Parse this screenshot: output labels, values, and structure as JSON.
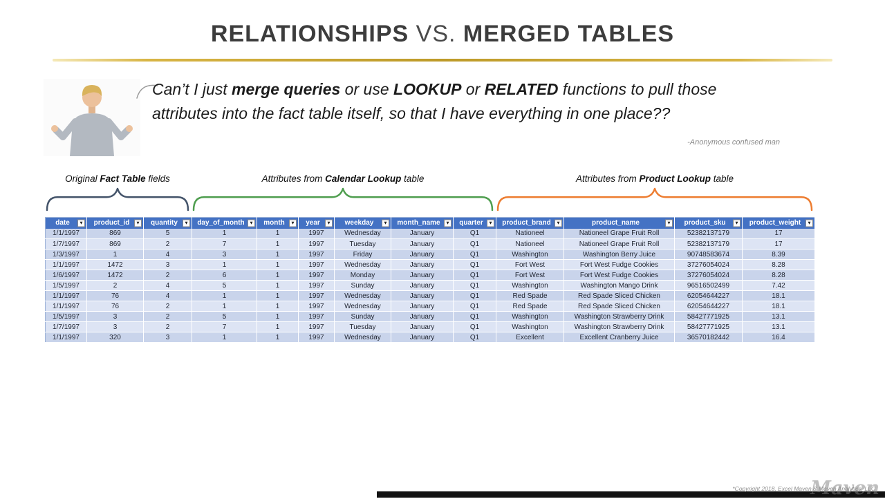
{
  "title": {
    "part1": "RELATIONSHIPS ",
    "part2": "VS. ",
    "part3": "MERGED TABLES"
  },
  "quote": {
    "segments": [
      {
        "text": "Can’t I just ",
        "bold": false
      },
      {
        "text": "merge queries",
        "bold": true
      },
      {
        "text": " or use ",
        "bold": false
      },
      {
        "text": "LOOKUP",
        "bold": true
      },
      {
        "text": " or ",
        "bold": false
      },
      {
        "text": "RELATED",
        "bold": true
      },
      {
        "text": " functions to pull those attributes into the fact table itself, so that I have everything in one place??",
        "bold": false
      }
    ],
    "attribution": "-Anonymous confused man"
  },
  "groups": [
    {
      "label_pre": "Original ",
      "label_bold": "Fact Table",
      "label_post": " fields",
      "color": "#44546A"
    },
    {
      "label_pre": "Attributes from ",
      "label_bold": "Calendar Lookup",
      "label_post": " table",
      "color": "#4F9E4F"
    },
    {
      "label_pre": "Attributes from ",
      "label_bold": "Product Lookup",
      "label_post": " table",
      "color": "#ED7D31"
    }
  ],
  "icons": {
    "filter_dropdown": "▾"
  },
  "table": {
    "columns": [
      "date",
      "product_id",
      "quantity",
      "day_of_month",
      "month",
      "year",
      "weekday",
      "month_name",
      "quarter",
      "product_brand",
      "product_name",
      "product_sku",
      "product_weight"
    ],
    "rows": [
      [
        "1/1/1997",
        "869",
        "5",
        "1",
        "1",
        "1997",
        "Wednesday",
        "January",
        "Q1",
        "Nationeel",
        "Nationeel Grape Fruit Roll",
        "52382137179",
        "17"
      ],
      [
        "1/7/1997",
        "869",
        "2",
        "7",
        "1",
        "1997",
        "Tuesday",
        "January",
        "Q1",
        "Nationeel",
        "Nationeel Grape Fruit Roll",
        "52382137179",
        "17"
      ],
      [
        "1/3/1997",
        "1",
        "4",
        "3",
        "1",
        "1997",
        "Friday",
        "January",
        "Q1",
        "Washington",
        "Washington Berry Juice",
        "90748583674",
        "8.39"
      ],
      [
        "1/1/1997",
        "1472",
        "3",
        "1",
        "1",
        "1997",
        "Wednesday",
        "January",
        "Q1",
        "Fort West",
        "Fort West Fudge Cookies",
        "37276054024",
        "8.28"
      ],
      [
        "1/6/1997",
        "1472",
        "2",
        "6",
        "1",
        "1997",
        "Monday",
        "January",
        "Q1",
        "Fort West",
        "Fort West Fudge Cookies",
        "37276054024",
        "8.28"
      ],
      [
        "1/5/1997",
        "2",
        "4",
        "5",
        "1",
        "1997",
        "Sunday",
        "January",
        "Q1",
        "Washington",
        "Washington Mango Drink",
        "96516502499",
        "7.42"
      ],
      [
        "1/1/1997",
        "76",
        "4",
        "1",
        "1",
        "1997",
        "Wednesday",
        "January",
        "Q1",
        "Red Spade",
        "Red Spade Sliced Chicken",
        "62054644227",
        "18.1"
      ],
      [
        "1/1/1997",
        "76",
        "2",
        "1",
        "1",
        "1997",
        "Wednesday",
        "January",
        "Q1",
        "Red Spade",
        "Red Spade Sliced Chicken",
        "62054644227",
        "18.1"
      ],
      [
        "1/5/1997",
        "3",
        "2",
        "5",
        "1",
        "1997",
        "Sunday",
        "January",
        "Q1",
        "Washington",
        "Washington Strawberry Drink",
        "58427771925",
        "13.1"
      ],
      [
        "1/7/1997",
        "3",
        "2",
        "7",
        "1",
        "1997",
        "Tuesday",
        "January",
        "Q1",
        "Washington",
        "Washington Strawberry Drink",
        "58427771925",
        "13.1"
      ],
      [
        "1/1/1997",
        "320",
        "3",
        "1",
        "1",
        "1997",
        "Wednesday",
        "January",
        "Q1",
        "Excellent",
        "Excellent Cranberry Juice",
        "36570182442",
        "16.4"
      ]
    ]
  },
  "footer": {
    "copyright": "*Copyright 2018, Excel Maven & Maven Analytics, LLC",
    "watermark": "Maven"
  },
  "colors": {
    "table_header": "#4472C4",
    "row_odd": "#c9d4eb",
    "row_even": "#dde4f4",
    "gold": "#BD9A28"
  }
}
